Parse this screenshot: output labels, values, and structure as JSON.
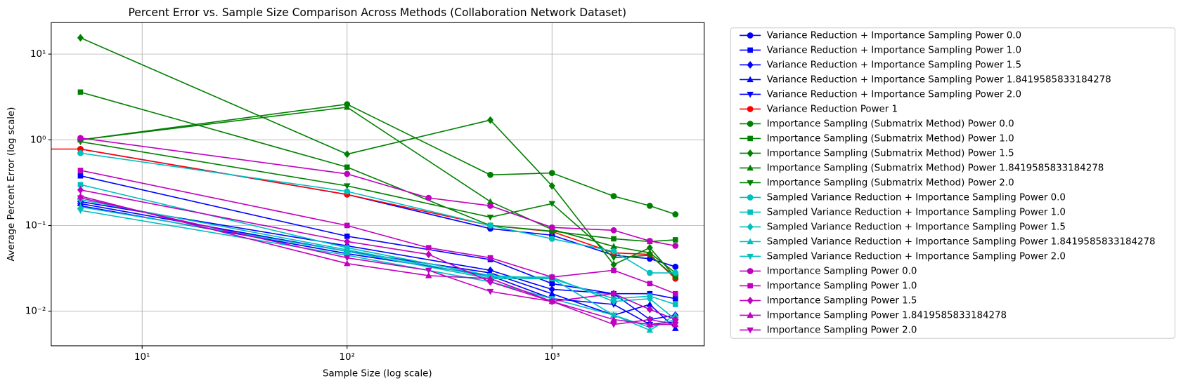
{
  "chart_data": {
    "type": "line",
    "title": "Percent Error vs. Sample Size Comparison Across Methods (Collaboration Network Dataset)",
    "x_label": "Sample Size (log scale)",
    "y_label": "Average Percent Error (log scale)",
    "xscale": "log",
    "yscale": "log",
    "xlim": [
      3.6,
      5530
    ],
    "ylim": [
      0.00395,
      23.3
    ],
    "xticks": [
      {
        "value": 10,
        "label": "10¹"
      },
      {
        "value": 100,
        "label": "10²"
      },
      {
        "value": 1000,
        "label": "10³"
      }
    ],
    "yticks": [
      {
        "value": 0.01,
        "label": "10⁻²"
      },
      {
        "value": 0.1,
        "label": "10⁻¹"
      },
      {
        "value": 1,
        "label": "10⁰"
      },
      {
        "value": 10,
        "label": "10¹"
      }
    ],
    "grid": true,
    "legend_position": "outside right",
    "series": [
      {
        "name": "Variance Reduction + Importance Sampling Power 0.0",
        "color": "#0000ff",
        "marker": "o",
        "x": [
          5,
          100,
          500,
          1000,
          2000,
          3000,
          4000
        ],
        "values": [
          0.78,
          0.23,
          0.092,
          0.077,
          0.045,
          0.041,
          0.033
        ]
      },
      {
        "name": "Variance Reduction + Importance Sampling Power 1.0",
        "color": "#0000ff",
        "marker": "s",
        "x": [
          5,
          100,
          500,
          1000,
          2000,
          3000,
          4000
        ],
        "values": [
          0.38,
          0.075,
          0.04,
          0.021,
          0.016,
          0.016,
          0.014
        ]
      },
      {
        "name": "Variance Reduction + Importance Sampling Power 1.5",
        "color": "#0000ff",
        "marker": "D",
        "x": [
          5,
          100,
          500,
          1000,
          2000,
          3000,
          4000
        ],
        "values": [
          0.19,
          0.058,
          0.03,
          0.018,
          0.016,
          0.008,
          0.009
        ]
      },
      {
        "name": "Variance Reduction + Importance Sampling Power 1.8419585833184278",
        "color": "#0000ff",
        "marker": "^",
        "x": [
          5,
          100,
          500,
          1000,
          2000,
          3000,
          4000
        ],
        "values": [
          0.18,
          0.05,
          0.028,
          0.016,
          0.009,
          0.012,
          0.0063
        ]
      },
      {
        "name": "Variance Reduction + Importance Sampling Power 2.0",
        "color": "#0000ff",
        "marker": "v",
        "x": [
          5,
          100,
          500,
          1000,
          2000,
          3000,
          4000
        ],
        "values": [
          0.17,
          0.047,
          0.026,
          0.014,
          0.012,
          0.007,
          0.0075
        ]
      },
      {
        "name": "Variance Reduction Power 1",
        "color": "#ff0000",
        "marker": "o",
        "x": [
          1,
          5,
          100,
          500,
          1000,
          2000,
          3000,
          4000
        ],
        "values": [
          0.78,
          0.78,
          0.23,
          0.1,
          0.085,
          0.048,
          0.046,
          0.024
        ]
      },
      {
        "name": "Importance Sampling (Submatrix Method) Power 0.0",
        "color": "#008000",
        "marker": "o",
        "x": [
          5,
          100,
          500,
          1000,
          2000,
          3000,
          4000
        ],
        "values": [
          1.0,
          2.6,
          0.39,
          0.41,
          0.22,
          0.17,
          0.135
        ]
      },
      {
        "name": "Importance Sampling (Submatrix Method) Power 1.0",
        "color": "#008000",
        "marker": "s",
        "x": [
          5,
          100,
          500,
          1000,
          2000,
          3000,
          4000
        ],
        "values": [
          3.6,
          0.48,
          0.1,
          0.086,
          0.07,
          0.065,
          0.068
        ]
      },
      {
        "name": "Importance Sampling (Submatrix Method) Power 1.5",
        "color": "#008000",
        "marker": "D",
        "x": [
          5,
          100,
          500,
          1000,
          2000,
          3000,
          4000
        ],
        "values": [
          15.5,
          0.68,
          1.7,
          0.29,
          0.035,
          0.055,
          0.025
        ]
      },
      {
        "name": "Importance Sampling (Submatrix Method) Power 1.8419585833184278",
        "color": "#008000",
        "marker": "^",
        "x": [
          5,
          100,
          500,
          1000,
          2000,
          3000,
          4000
        ],
        "values": [
          1.0,
          2.4,
          0.19,
          0.09,
          0.057,
          0.048,
          0.028
        ]
      },
      {
        "name": "Importance Sampling (Submatrix Method) Power 2.0",
        "color": "#008000",
        "marker": "v",
        "x": [
          5,
          100,
          500,
          1000,
          2000,
          3000,
          4000
        ],
        "values": [
          0.95,
          0.29,
          0.125,
          0.18,
          0.042,
          0.045,
          0.025
        ]
      },
      {
        "name": "Sampled Variance Reduction + Importance Sampling Power 0.0",
        "color": "#00bfbf",
        "marker": "o",
        "x": [
          5,
          100,
          500,
          1000,
          2000,
          3000,
          4000
        ],
        "values": [
          0.7,
          0.25,
          0.1,
          0.07,
          0.05,
          0.028,
          0.028
        ]
      },
      {
        "name": "Sampled Variance Reduction + Importance Sampling Power 1.0",
        "color": "#00bfbf",
        "marker": "s",
        "x": [
          5,
          100,
          500,
          1000,
          2000,
          3000,
          4000
        ],
        "values": [
          0.3,
          0.055,
          0.026,
          0.024,
          0.014,
          0.015,
          0.012
        ]
      },
      {
        "name": "Sampled Variance Reduction + Importance Sampling Power 1.5",
        "color": "#00bfbf",
        "marker": "D",
        "x": [
          5,
          100,
          500,
          1000,
          2000,
          3000,
          4000
        ],
        "values": [
          0.2,
          0.052,
          0.025,
          0.025,
          0.013,
          0.014,
          0.008
        ]
      },
      {
        "name": "Sampled Variance Reduction + Importance Sampling Power 1.8419585833184278",
        "color": "#00bfbf",
        "marker": "^",
        "x": [
          5,
          100,
          500,
          1000,
          2000,
          3000,
          4000
        ],
        "values": [
          0.165,
          0.05,
          0.024,
          0.024,
          0.009,
          0.006,
          0.009
        ]
      },
      {
        "name": "Sampled Variance Reduction + Importance Sampling Power 2.0",
        "color": "#00bfbf",
        "marker": "v",
        "x": [
          5,
          100,
          500,
          1000,
          2000,
          3000,
          4000
        ],
        "values": [
          0.15,
          0.045,
          0.022,
          0.014,
          0.009,
          0.0065,
          0.008
        ]
      },
      {
        "name": "Importance Sampling Power 0.0",
        "color": "#bf00bf",
        "marker": "o",
        "x": [
          5,
          100,
          250,
          500,
          1000,
          2000,
          3000,
          4000
        ],
        "values": [
          1.05,
          0.4,
          0.21,
          0.17,
          0.095,
          0.088,
          0.066,
          0.058
        ]
      },
      {
        "name": "Importance Sampling Power 1.0",
        "color": "#bf00bf",
        "marker": "s",
        "x": [
          5,
          100,
          250,
          500,
          1000,
          2000,
          3000,
          4000
        ],
        "values": [
          0.44,
          0.1,
          0.055,
          0.042,
          0.025,
          0.03,
          0.021,
          0.016
        ]
      },
      {
        "name": "Importance Sampling Power 1.5",
        "color": "#bf00bf",
        "marker": "D",
        "x": [
          5,
          100,
          250,
          500,
          1000,
          2000,
          3000,
          4000
        ],
        "values": [
          0.26,
          0.065,
          0.046,
          0.022,
          0.013,
          0.016,
          0.0105,
          0.008
        ]
      },
      {
        "name": "Importance Sampling Power 1.8419585833184278",
        "color": "#bf00bf",
        "marker": "^",
        "x": [
          5,
          100,
          250,
          500,
          1000,
          2000,
          3000,
          4000
        ],
        "values": [
          0.22,
          0.036,
          0.026,
          0.024,
          0.013,
          0.008,
          0.007,
          0.007
        ]
      },
      {
        "name": "Importance Sampling Power 2.0",
        "color": "#bf00bf",
        "marker": "v",
        "x": [
          5,
          100,
          250,
          500,
          1000,
          2000,
          3000,
          4000
        ],
        "values": [
          0.21,
          0.042,
          0.03,
          0.017,
          0.013,
          0.007,
          0.008,
          0.007
        ]
      }
    ]
  }
}
